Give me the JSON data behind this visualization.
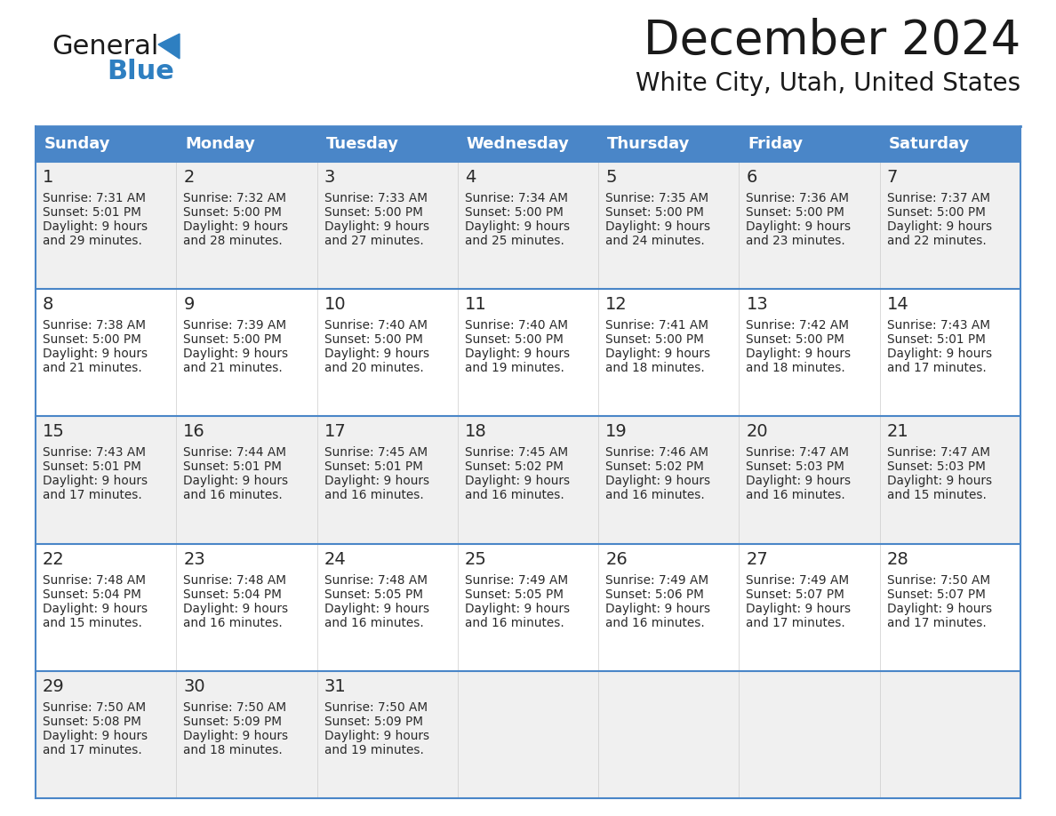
{
  "title": "December 2024",
  "subtitle": "White City, Utah, United States",
  "header_color": "#4a86c8",
  "header_text_color": "#ffffff",
  "cell_bg_color_odd": "#f0f0f0",
  "cell_bg_color_even": "#ffffff",
  "border_color": "#4a86c8",
  "row_line_color": "#4a86c8",
  "days_of_week": [
    "Sunday",
    "Monday",
    "Tuesday",
    "Wednesday",
    "Thursday",
    "Friday",
    "Saturday"
  ],
  "calendar_data": [
    [
      {
        "day": 1,
        "sunrise": "7:31 AM",
        "sunset": "5:01 PM",
        "daylight_hours": 9,
        "daylight_minutes": 29
      },
      {
        "day": 2,
        "sunrise": "7:32 AM",
        "sunset": "5:00 PM",
        "daylight_hours": 9,
        "daylight_minutes": 28
      },
      {
        "day": 3,
        "sunrise": "7:33 AM",
        "sunset": "5:00 PM",
        "daylight_hours": 9,
        "daylight_minutes": 27
      },
      {
        "day": 4,
        "sunrise": "7:34 AM",
        "sunset": "5:00 PM",
        "daylight_hours": 9,
        "daylight_minutes": 25
      },
      {
        "day": 5,
        "sunrise": "7:35 AM",
        "sunset": "5:00 PM",
        "daylight_hours": 9,
        "daylight_minutes": 24
      },
      {
        "day": 6,
        "sunrise": "7:36 AM",
        "sunset": "5:00 PM",
        "daylight_hours": 9,
        "daylight_minutes": 23
      },
      {
        "day": 7,
        "sunrise": "7:37 AM",
        "sunset": "5:00 PM",
        "daylight_hours": 9,
        "daylight_minutes": 22
      }
    ],
    [
      {
        "day": 8,
        "sunrise": "7:38 AM",
        "sunset": "5:00 PM",
        "daylight_hours": 9,
        "daylight_minutes": 21
      },
      {
        "day": 9,
        "sunrise": "7:39 AM",
        "sunset": "5:00 PM",
        "daylight_hours": 9,
        "daylight_minutes": 21
      },
      {
        "day": 10,
        "sunrise": "7:40 AM",
        "sunset": "5:00 PM",
        "daylight_hours": 9,
        "daylight_minutes": 20
      },
      {
        "day": 11,
        "sunrise": "7:40 AM",
        "sunset": "5:00 PM",
        "daylight_hours": 9,
        "daylight_minutes": 19
      },
      {
        "day": 12,
        "sunrise": "7:41 AM",
        "sunset": "5:00 PM",
        "daylight_hours": 9,
        "daylight_minutes": 18
      },
      {
        "day": 13,
        "sunrise": "7:42 AM",
        "sunset": "5:00 PM",
        "daylight_hours": 9,
        "daylight_minutes": 18
      },
      {
        "day": 14,
        "sunrise": "7:43 AM",
        "sunset": "5:01 PM",
        "daylight_hours": 9,
        "daylight_minutes": 17
      }
    ],
    [
      {
        "day": 15,
        "sunrise": "7:43 AM",
        "sunset": "5:01 PM",
        "daylight_hours": 9,
        "daylight_minutes": 17
      },
      {
        "day": 16,
        "sunrise": "7:44 AM",
        "sunset": "5:01 PM",
        "daylight_hours": 9,
        "daylight_minutes": 16
      },
      {
        "day": 17,
        "sunrise": "7:45 AM",
        "sunset": "5:01 PM",
        "daylight_hours": 9,
        "daylight_minutes": 16
      },
      {
        "day": 18,
        "sunrise": "7:45 AM",
        "sunset": "5:02 PM",
        "daylight_hours": 9,
        "daylight_minutes": 16
      },
      {
        "day": 19,
        "sunrise": "7:46 AM",
        "sunset": "5:02 PM",
        "daylight_hours": 9,
        "daylight_minutes": 16
      },
      {
        "day": 20,
        "sunrise": "7:47 AM",
        "sunset": "5:03 PM",
        "daylight_hours": 9,
        "daylight_minutes": 16
      },
      {
        "day": 21,
        "sunrise": "7:47 AM",
        "sunset": "5:03 PM",
        "daylight_hours": 9,
        "daylight_minutes": 15
      }
    ],
    [
      {
        "day": 22,
        "sunrise": "7:48 AM",
        "sunset": "5:04 PM",
        "daylight_hours": 9,
        "daylight_minutes": 15
      },
      {
        "day": 23,
        "sunrise": "7:48 AM",
        "sunset": "5:04 PM",
        "daylight_hours": 9,
        "daylight_minutes": 16
      },
      {
        "day": 24,
        "sunrise": "7:48 AM",
        "sunset": "5:05 PM",
        "daylight_hours": 9,
        "daylight_minutes": 16
      },
      {
        "day": 25,
        "sunrise": "7:49 AM",
        "sunset": "5:05 PM",
        "daylight_hours": 9,
        "daylight_minutes": 16
      },
      {
        "day": 26,
        "sunrise": "7:49 AM",
        "sunset": "5:06 PM",
        "daylight_hours": 9,
        "daylight_minutes": 16
      },
      {
        "day": 27,
        "sunrise": "7:49 AM",
        "sunset": "5:07 PM",
        "daylight_hours": 9,
        "daylight_minutes": 17
      },
      {
        "day": 28,
        "sunrise": "7:50 AM",
        "sunset": "5:07 PM",
        "daylight_hours": 9,
        "daylight_minutes": 17
      }
    ],
    [
      {
        "day": 29,
        "sunrise": "7:50 AM",
        "sunset": "5:08 PM",
        "daylight_hours": 9,
        "daylight_minutes": 17
      },
      {
        "day": 30,
        "sunrise": "7:50 AM",
        "sunset": "5:09 PM",
        "daylight_hours": 9,
        "daylight_minutes": 18
      },
      {
        "day": 31,
        "sunrise": "7:50 AM",
        "sunset": "5:09 PM",
        "daylight_hours": 9,
        "daylight_minutes": 19
      },
      null,
      null,
      null,
      null
    ]
  ],
  "logo_color_general": "#1a1a1a",
  "logo_color_blue": "#2e7fc1",
  "logo_triangle_color": "#2e7fc1",
  "title_fontsize": 38,
  "subtitle_fontsize": 20,
  "header_fontsize": 13,
  "day_number_fontsize": 14,
  "cell_fontsize": 9.8
}
